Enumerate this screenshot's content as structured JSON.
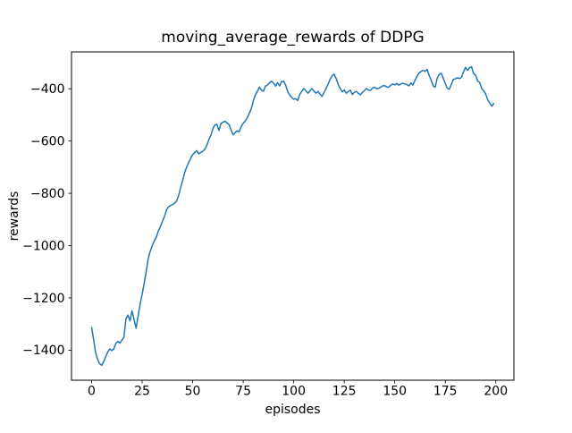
{
  "figure": {
    "background_color": "#ffffff",
    "text_color": "#000000",
    "spine_color": "#000000"
  },
  "chart_data": {
    "type": "line",
    "title": "moving_average_rewards of DDPG",
    "xlabel": "episodes",
    "ylabel": "rewards",
    "grid": false,
    "legend": "none",
    "xlim": [
      -9.95,
      208.95
    ],
    "ylim": [
      -1515,
      -259
    ],
    "xticks": {
      "values": [
        0,
        25,
        50,
        75,
        100,
        125,
        150,
        175,
        200
      ],
      "labels": [
        "0",
        "25",
        "50",
        "75",
        "100",
        "125",
        "150",
        "175",
        "200"
      ]
    },
    "yticks": {
      "values": [
        -400,
        -600,
        -800,
        -1000,
        -1200,
        -1400
      ],
      "labels": [
        "−400",
        "−600",
        "−800",
        "−1000",
        "−1200",
        "−1400"
      ]
    },
    "series": [
      {
        "name": "moving_average_rewards",
        "color": "#1f77b4",
        "line_width": 1.5,
        "x_start": 0,
        "x_step": 1,
        "y": [
          -1313,
          -1360,
          -1410,
          -1437,
          -1452,
          -1458,
          -1444,
          -1424,
          -1407,
          -1395,
          -1402,
          -1395,
          -1374,
          -1367,
          -1373,
          -1362,
          -1350,
          -1280,
          -1266,
          -1288,
          -1249,
          -1283,
          -1316,
          -1270,
          -1225,
          -1186,
          -1145,
          -1100,
          -1050,
          -1022,
          -1000,
          -982,
          -968,
          -945,
          -928,
          -908,
          -890,
          -865,
          -852,
          -847,
          -843,
          -838,
          -830,
          -810,
          -780,
          -752,
          -722,
          -700,
          -683,
          -666,
          -652,
          -644,
          -637,
          -649,
          -644,
          -639,
          -632,
          -617,
          -595,
          -578,
          -553,
          -539,
          -536,
          -560,
          -533,
          -528,
          -524,
          -531,
          -537,
          -558,
          -576,
          -568,
          -561,
          -565,
          -545,
          -532,
          -524,
          -511,
          -494,
          -477,
          -446,
          -424,
          -410,
          -394,
          -405,
          -410,
          -390,
          -386,
          -377,
          -371,
          -378,
          -390,
          -377,
          -389,
          -373,
          -371,
          -386,
          -411,
          -423,
          -433,
          -440,
          -438,
          -445,
          -421,
          -410,
          -399,
          -408,
          -417,
          -409,
          -399,
          -409,
          -417,
          -410,
          -421,
          -429,
          -414,
          -399,
          -383,
          -364,
          -351,
          -344,
          -361,
          -384,
          -399,
          -412,
          -405,
          -417,
          -411,
          -405,
          -422,
          -414,
          -410,
          -418,
          -423,
          -414,
          -407,
          -399,
          -405,
          -406,
          -397,
          -394,
          -400,
          -399,
          -394,
          -389,
          -388,
          -393,
          -394,
          -386,
          -382,
          -385,
          -380,
          -386,
          -382,
          -379,
          -382,
          -384,
          -389,
          -377,
          -386,
          -368,
          -352,
          -340,
          -334,
          -329,
          -334,
          -326,
          -349,
          -366,
          -389,
          -394,
          -360,
          -345,
          -341,
          -360,
          -380,
          -398,
          -402,
          -383,
          -364,
          -362,
          -358,
          -361,
          -356,
          -336,
          -318,
          -330,
          -320,
          -316,
          -342,
          -348,
          -370,
          -376,
          -399,
          -408,
          -420,
          -442,
          -455,
          -467,
          -456
        ]
      }
    ]
  }
}
